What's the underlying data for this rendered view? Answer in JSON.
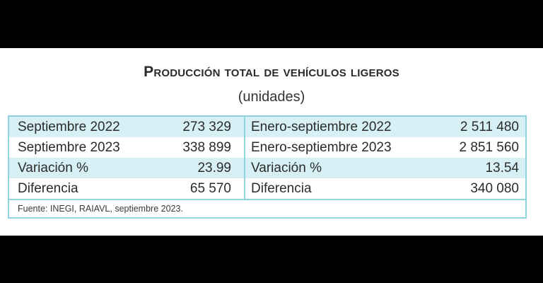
{
  "header": {
    "title": "Producción total de vehículos ligeros",
    "subtitle": "(unidades)"
  },
  "table": {
    "rows": [
      {
        "label_left": "Septiembre 2022",
        "value_left": "273 329",
        "label_right": "Enero-septiembre 2022",
        "value_right": "2 511 480"
      },
      {
        "label_left": "Septiembre 2023",
        "value_left": "338 899",
        "label_right": "Enero-septiembre 2023",
        "value_right": "2 851 560"
      },
      {
        "label_left": "Variación %",
        "value_left": "23.99",
        "label_right": "Variación %",
        "value_right": "13.54"
      },
      {
        "label_left": "Diferencia",
        "value_left": "65 570",
        "label_right": "Diferencia",
        "value_right": "340 080"
      }
    ],
    "source": "Fuente: INEGI, RAIAVL, septiembre 2023."
  },
  "colors": {
    "accent_border": "#8fd3df",
    "row_shade": "#d6f0f5"
  }
}
